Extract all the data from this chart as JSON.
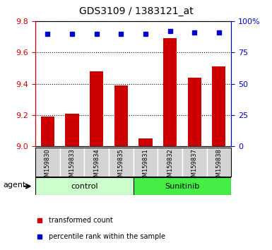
{
  "title": "GDS3109 / 1383121_at",
  "samples": [
    "GSM159830",
    "GSM159833",
    "GSM159834",
    "GSM159835",
    "GSM159831",
    "GSM159832",
    "GSM159837",
    "GSM159838"
  ],
  "red_values": [
    9.19,
    9.21,
    9.48,
    9.39,
    9.05,
    9.69,
    9.44,
    9.51
  ],
  "blue_values": [
    90,
    90,
    90,
    90,
    90,
    92,
    91,
    91
  ],
  "groups": [
    {
      "label": "control",
      "span": [
        0,
        3
      ],
      "color": "#ccffcc",
      "edge_color": "#aaffaa"
    },
    {
      "label": "Sunitinib",
      "span": [
        4,
        7
      ],
      "color": "#44ee44",
      "edge_color": "#22cc22"
    }
  ],
  "ylim_left": [
    9.0,
    9.8
  ],
  "ylim_right": [
    0,
    100
  ],
  "yticks_left": [
    9.0,
    9.2,
    9.4,
    9.6,
    9.8
  ],
  "yticks_right": [
    0,
    25,
    50,
    75,
    100
  ],
  "bar_color": "#cc0000",
  "dot_color": "#0000cc",
  "bg_color": "#ffffff",
  "left_tick_color": "#cc0000",
  "right_tick_color": "#0000cc",
  "grid_color": "#000000",
  "agent_label": "agent",
  "legend_red": "transformed count",
  "legend_blue": "percentile rank within the sample",
  "title_fontsize": 10,
  "label_fontsize": 7.5,
  "tick_fontsize": 8,
  "legend_fontsize": 7
}
